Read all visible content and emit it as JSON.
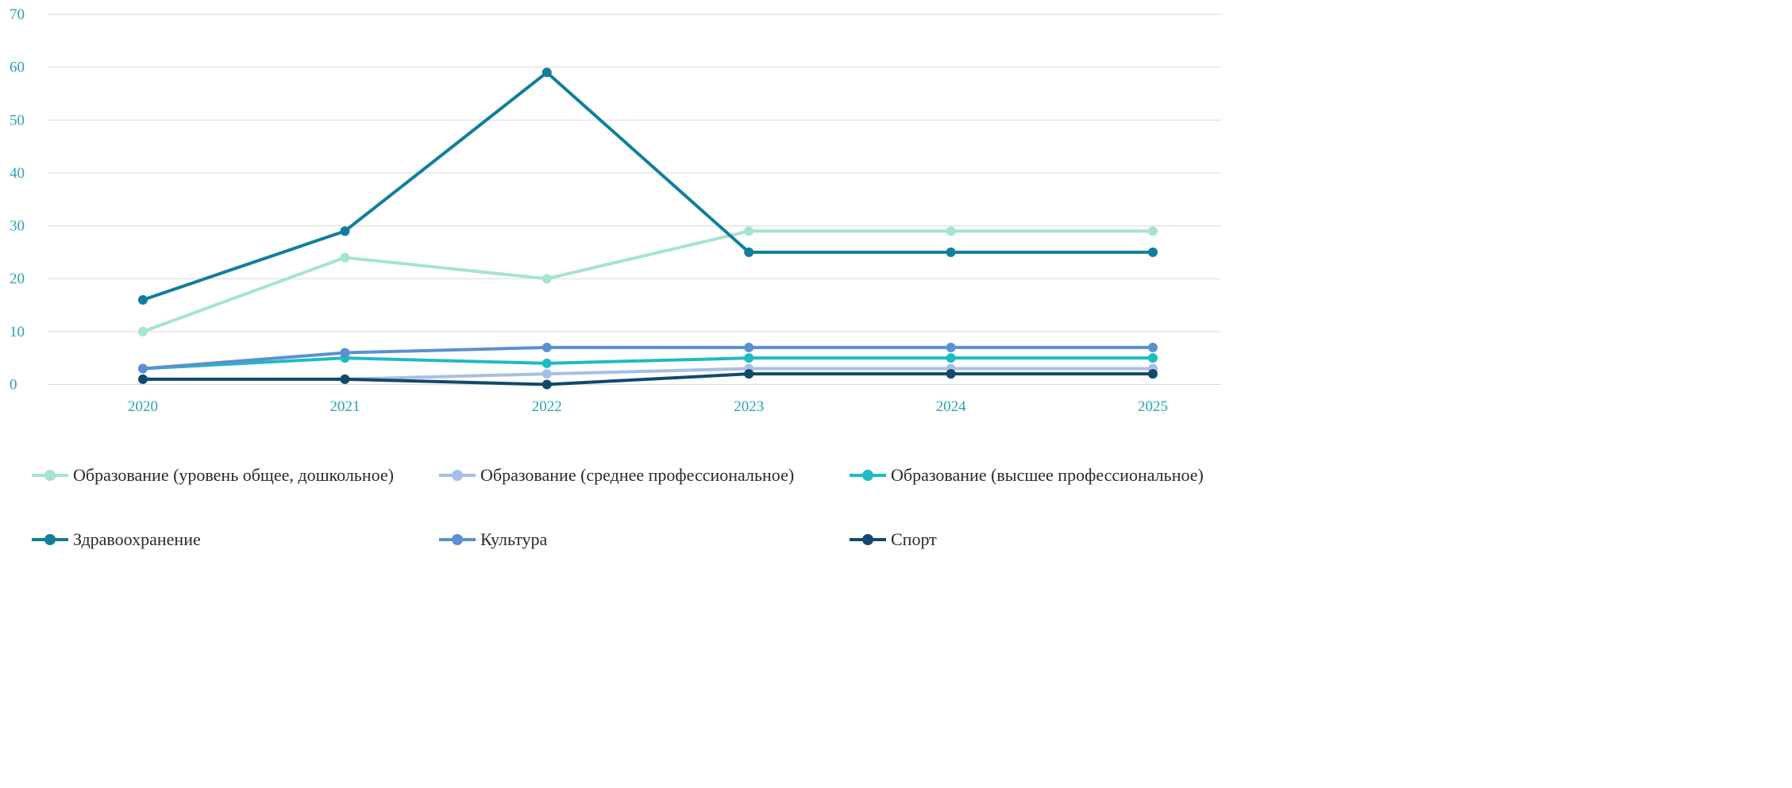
{
  "chart_data": {
    "type": "line",
    "categories": [
      "2020",
      "2021",
      "2022",
      "2023",
      "2024",
      "2025"
    ],
    "ylim": [
      0,
      70
    ],
    "yticks": [
      0,
      10,
      20,
      30,
      40,
      50,
      60,
      70
    ],
    "grid": true,
    "legend_position": "bottom",
    "series": [
      {
        "name": "Образование (уровень общее, дошкольное)",
        "color": "#a6e3d2",
        "values": [
          10,
          24,
          20,
          29,
          29,
          29
        ]
      },
      {
        "name": "Образование (среднее профессиональное)",
        "color": "#a7bfe6",
        "values": [
          1,
          1,
          2,
          3,
          3,
          3
        ]
      },
      {
        "name": "Образование (высшее профессиональное)",
        "color": "#1fbac6",
        "values": [
          3,
          5,
          4,
          5,
          5,
          5
        ]
      },
      {
        "name": "Здравоохранение",
        "color": "#0f7f9c",
        "values": [
          16,
          29,
          59,
          25,
          25,
          25
        ]
      },
      {
        "name": "Культура",
        "color": "#5a90d0",
        "values": [
          3,
          6,
          7,
          7,
          7,
          7
        ]
      },
      {
        "name": "Спорт",
        "color": "#12496c",
        "values": [
          1,
          1,
          0,
          2,
          2,
          2
        ]
      }
    ]
  }
}
